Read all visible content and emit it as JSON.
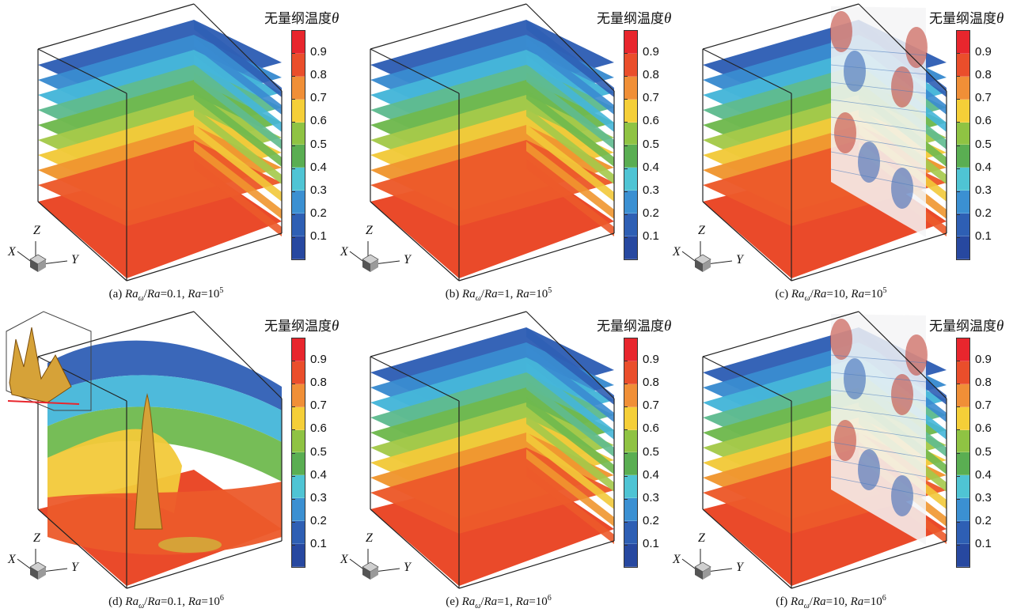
{
  "colorbar": {
    "title": "无量纲温度",
    "symbol": "θ",
    "ticks": [
      "0.9",
      "0.8",
      "0.7",
      "0.6",
      "0.5",
      "0.4",
      "0.3",
      "0.2",
      "0.1"
    ],
    "colors": [
      "#e8262d",
      "#ea4e2b",
      "#f08f37",
      "#f5cf38",
      "#8fc343",
      "#5aae52",
      "#4fc4d4",
      "#3b90d2",
      "#2e5fb4",
      "#2748a0"
    ]
  },
  "axes": {
    "x": "X",
    "y": "Y",
    "z": "Z"
  },
  "panels": [
    {
      "id": "a",
      "prefix": "(a)",
      "ratio": "0.1",
      "ra_exp": "5",
      "variant": "stratified"
    },
    {
      "id": "b",
      "prefix": "(b)",
      "ratio": "1",
      "ra_exp": "5",
      "variant": "stratified"
    },
    {
      "id": "c",
      "prefix": "(c)",
      "ratio": "10",
      "ra_exp": "5",
      "variant": "wall"
    },
    {
      "id": "d",
      "prefix": "(d)",
      "ratio": "0.1",
      "ra_exp": "6",
      "variant": "convective"
    },
    {
      "id": "e",
      "prefix": "(e)",
      "ratio": "1",
      "ra_exp": "6",
      "variant": "stratified"
    },
    {
      "id": "f",
      "prefix": "(f)",
      "ratio": "10",
      "ra_exp": "6",
      "variant": "wall"
    }
  ],
  "caption_parts": {
    "ra": "Ra",
    "omega": "ω",
    "slash": "/",
    "eq": "=",
    "comma": ", ",
    "base": "10"
  }
}
